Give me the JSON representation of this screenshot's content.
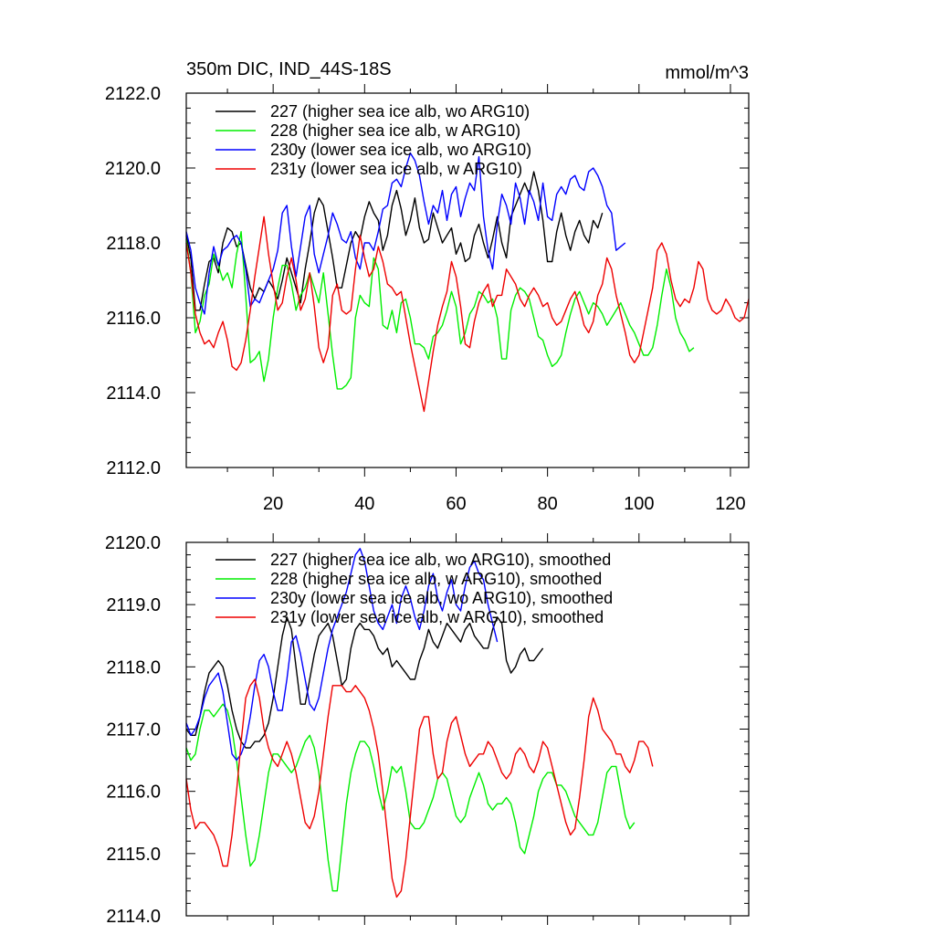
{
  "chart_data": [
    {
      "type": "line",
      "title": "350m DIC, IND_44S-18S",
      "units": "mmol/m^3",
      "xlim": [
        1,
        124
      ],
      "ylim": [
        2112,
        2122
      ],
      "xticks": [
        20,
        40,
        60,
        80,
        100,
        120
      ],
      "yticks": [
        2112.0,
        2114.0,
        2116.0,
        2118.0,
        2120.0,
        2122.0
      ],
      "ytick_labels": [
        "2112.0",
        "2114.0",
        "2116.0",
        "2118.0",
        "2120.0",
        "2122.0"
      ],
      "xtick_labels": [
        "20",
        "40",
        "60",
        "80",
        "100",
        "120"
      ],
      "legend_position": "top-left",
      "series": [
        {
          "name": "227 (higher sea ice alb, wo ARG10)",
          "color": "#000000",
          "x0": 1,
          "values": [
            2118.2,
            2117.6,
            2116.2,
            2116.2,
            2116.9,
            2117.5,
            2117.6,
            2117.2,
            2118.0,
            2118.4,
            2118.3,
            2117.9,
            2118.0,
            2117.4,
            2116.8,
            2116.5,
            2116.8,
            2116.7,
            2117.0,
            2116.8,
            2116.5,
            2117.0,
            2117.6,
            2117.2,
            2116.8,
            2116.4,
            2117.3,
            2118.0,
            2118.8,
            2119.2,
            2119.0,
            2118.3,
            2117.6,
            2116.8,
            2116.8,
            2117.4,
            2118.0,
            2118.3,
            2118.1,
            2118.7,
            2119.1,
            2118.8,
            2118.6,
            2117.8,
            2118.2,
            2119.0,
            2119.4,
            2118.9,
            2118.2,
            2118.6,
            2119.2,
            2118.4,
            2118.0,
            2118.1,
            2118.8,
            2118.4,
            2118.0,
            2118.2,
            2118.4,
            2117.7,
            2118.0,
            2117.5,
            2117.6,
            2118.2,
            2118.5,
            2118.0,
            2117.6,
            2118.1,
            2118.7,
            2118.0,
            2117.6,
            2118.7,
            2119.0,
            2119.3,
            2119.6,
            2119.3,
            2119.9,
            2119.4,
            2118.6,
            2117.5,
            2117.5,
            2118.3,
            2118.8,
            2118.2,
            2117.8,
            2118.3,
            2118.6,
            2118.2,
            2118.0,
            2118.6,
            2118.4,
            2118.8
          ]
        },
        {
          "name": "228 (higher sea ice alb, w ARG10)",
          "color": "#00ee00",
          "x0": 1,
          "values": [
            2118.1,
            2117.2,
            2115.6,
            2115.9,
            2116.6,
            2116.9,
            2117.7,
            2117.4,
            2117.0,
            2117.2,
            2116.8,
            2117.7,
            2118.3,
            2116.6,
            2114.8,
            2114.9,
            2115.1,
            2114.3,
            2114.9,
            2116.0,
            2116.8,
            2117.4,
            2117.4,
            2116.9,
            2116.2,
            2116.6,
            2116.8,
            2117.2,
            2116.8,
            2116.4,
            2117.2,
            2116.1,
            2115.0,
            2114.1,
            2114.1,
            2114.2,
            2114.4,
            2116.0,
            2116.6,
            2116.4,
            2116.3,
            2117.6,
            2117.3,
            2115.8,
            2115.7,
            2116.2,
            2115.6,
            2116.4,
            2116.5,
            2116.0,
            2115.3,
            2115.3,
            2115.2,
            2114.9,
            2115.5,
            2115.6,
            2115.8,
            2116.2,
            2116.7,
            2116.3,
            2115.3,
            2115.6,
            2116.1,
            2116.3,
            2116.7,
            2116.6,
            2116.4,
            2116.5,
            2116.0,
            2114.9,
            2114.9,
            2116.2,
            2116.6,
            2116.8,
            2116.7,
            2116.5,
            2116.0,
            2115.5,
            2115.4,
            2115.0,
            2114.7,
            2114.8,
            2115.0,
            2115.6,
            2116.1,
            2116.5,
            2116.7,
            2116.4,
            2116.1,
            2116.4,
            2116.3,
            2116.1,
            2115.8,
            2116.0,
            2116.2,
            2116.4,
            2116.1,
            2115.8,
            2115.6,
            2115.3,
            2115.0,
            2115.0,
            2115.2,
            2115.8,
            2116.6,
            2117.3,
            2116.8,
            2116.0,
            2115.6,
            2115.4,
            2115.1,
            2115.2
          ]
        },
        {
          "name": "230y (lower sea ice alb, wo ARG10)",
          "color": "#0000ff",
          "x0": 1,
          "values": [
            2118.3,
            2117.8,
            2116.8,
            2116.4,
            2116.1,
            2117.2,
            2117.9,
            2117.4,
            2117.8,
            2117.9,
            2118.1,
            2118.2,
            2118.0,
            2117.3,
            2116.3,
            2116.5,
            2116.4,
            2116.7,
            2117.0,
            2117.3,
            2117.8,
            2118.8,
            2119.0,
            2117.9,
            2117.1,
            2117.9,
            2118.7,
            2119.0,
            2117.7,
            2117.2,
            2117.7,
            2118.2,
            2118.8,
            2118.5,
            2118.1,
            2118.0,
            2118.3,
            2117.6,
            2117.3,
            2118.0,
            2118.0,
            2117.8,
            2118.3,
            2118.9,
            2119.0,
            2119.6,
            2119.7,
            2119.5,
            2120.0,
            2120.4,
            2120.2,
            2119.8,
            2119.1,
            2118.5,
            2119.0,
            2118.8,
            2119.4,
            2118.6,
            2119.3,
            2119.5,
            2118.7,
            2119.2,
            2119.6,
            2119.4,
            2120.3,
            2118.7,
            2117.8,
            2117.3,
            2118.5,
            2119.3,
            2119.0,
            2118.5,
            2119.6,
            2119.2,
            2118.5,
            2119.4,
            2119.1,
            2118.6,
            2119.6,
            2118.7,
            2118.6,
            2119.3,
            2119.5,
            2119.3,
            2119.7,
            2119.8,
            2119.5,
            2119.4,
            2119.9,
            2120.0,
            2119.8,
            2119.5,
            2119.0,
            2118.8,
            2117.8,
            2117.9,
            2118.0
          ]
        },
        {
          "name": "231y (lower sea ice alb, w ARG10)",
          "color": "#ee0000",
          "x0": 1,
          "values": [
            2118.0,
            2117.2,
            2116.1,
            2115.6,
            2115.3,
            2115.4,
            2115.2,
            2115.6,
            2115.9,
            2115.4,
            2114.7,
            2114.6,
            2114.8,
            2115.4,
            2116.2,
            2117.1,
            2117.9,
            2118.7,
            2117.7,
            2116.9,
            2116.2,
            2116.4,
            2117.1,
            2117.6,
            2117.0,
            2116.2,
            2116.5,
            2117.2,
            2116.3,
            2115.2,
            2114.8,
            2115.2,
            2116.6,
            2116.9,
            2116.2,
            2116.1,
            2116.2,
            2117.3,
            2118.2,
            2117.6,
            2117.1,
            2117.3,
            2117.9,
            2117.5,
            2116.9,
            2116.8,
            2116.6,
            2116.7,
            2116.0,
            2115.3,
            2114.7,
            2114.1,
            2113.5,
            2114.3,
            2115.1,
            2115.8,
            2116.3,
            2116.7,
            2117.5,
            2117.1,
            2116.3,
            2115.3,
            2115.2,
            2115.9,
            2116.4,
            2116.7,
            2116.9,
            2116.3,
            2116.6,
            2116.6,
            2117.3,
            2117.1,
            2116.9,
            2116.5,
            2116.3,
            2116.6,
            2116.8,
            2116.6,
            2116.3,
            2116.4,
            2116.0,
            2115.8,
            2115.9,
            2116.2,
            2116.5,
            2116.7,
            2116.3,
            2115.8,
            2115.6,
            2115.9,
            2116.6,
            2116.9,
            2117.6,
            2117.3,
            2116.6,
            2116.1,
            2115.6,
            2115.0,
            2114.8,
            2115.0,
            2115.6,
            2116.2,
            2116.8,
            2117.8,
            2118.0,
            2117.7,
            2117.0,
            2116.5,
            2116.3,
            2116.5,
            2116.4,
            2116.8,
            2117.5,
            2117.3,
            2116.5,
            2116.2,
            2116.1,
            2116.2,
            2116.5,
            2116.3,
            2116.0,
            2115.9,
            2116.0,
            2116.5
          ]
        }
      ]
    },
    {
      "type": "line",
      "title": "",
      "units": "",
      "xlim": [
        1,
        124
      ],
      "ylim": [
        2114,
        2120
      ],
      "xticks": [
        20,
        40,
        60,
        80,
        100,
        120
      ],
      "yticks": [
        2114.0,
        2115.0,
        2116.0,
        2117.0,
        2118.0,
        2119.0,
        2120.0
      ],
      "ytick_labels": [
        "2114.0",
        "2115.0",
        "2116.0",
        "2117.0",
        "2118.0",
        "2119.0",
        "2120.0"
      ],
      "xtick_labels": [],
      "legend_position": "top-left",
      "series": [
        {
          "name": "227 (higher sea ice alb, wo ARG10), smoothed",
          "color": "#000000",
          "x0": 1,
          "values": [
            2117.0,
            2116.9,
            2116.9,
            2117.2,
            2117.6,
            2117.9,
            2118.0,
            2118.1,
            2118.0,
            2117.7,
            2117.3,
            2117.0,
            2116.8,
            2116.7,
            2116.7,
            2116.8,
            2116.8,
            2116.9,
            2117.1,
            2117.5,
            2118.0,
            2118.5,
            2118.8,
            2118.6,
            2118.0,
            2117.4,
            2117.4,
            2117.8,
            2118.2,
            2118.5,
            2118.6,
            2118.7,
            2118.5,
            2118.1,
            2117.7,
            2117.8,
            2118.3,
            2118.6,
            2118.7,
            2118.6,
            2118.6,
            2118.5,
            2118.3,
            2118.2,
            2118.3,
            2118.0,
            2118.1,
            2118.0,
            2117.9,
            2117.8,
            2117.8,
            2118.1,
            2118.3,
            2118.6,
            2118.4,
            2118.3,
            2118.5,
            2118.7,
            2118.6,
            2118.5,
            2118.4,
            2118.6,
            2118.7,
            2118.5,
            2118.4,
            2118.3,
            2118.3,
            2118.6,
            2118.8,
            2118.7,
            2118.1,
            2117.9,
            2118.0,
            2118.2,
            2118.3,
            2118.1,
            2118.1,
            2118.2,
            2118.3
          ]
        },
        {
          "name": "228 (higher sea ice alb, w ARG10), smoothed",
          "color": "#00ee00",
          "x0": 1,
          "values": [
            2116.7,
            2116.5,
            2116.6,
            2117.0,
            2117.3,
            2117.3,
            2117.2,
            2117.3,
            2117.4,
            2117.3,
            2117.0,
            2116.5,
            2115.9,
            2115.3,
            2114.8,
            2114.9,
            2115.3,
            2115.8,
            2116.3,
            2116.6,
            2116.6,
            2116.5,
            2116.4,
            2116.3,
            2116.4,
            2116.6,
            2116.8,
            2116.9,
            2116.7,
            2116.3,
            2115.6,
            2114.9,
            2114.4,
            2114.4,
            2115.1,
            2115.8,
            2116.3,
            2116.6,
            2116.8,
            2116.8,
            2116.7,
            2116.4,
            2116.0,
            2115.7,
            2116.0,
            2116.4,
            2116.3,
            2116.4,
            2116.0,
            2115.5,
            2115.4,
            2115.4,
            2115.5,
            2115.7,
            2115.9,
            2116.2,
            2116.3,
            2116.2,
            2115.9,
            2115.6,
            2115.5,
            2115.6,
            2115.9,
            2116.1,
            2116.3,
            2116.1,
            2115.8,
            2115.7,
            2115.8,
            2115.8,
            2115.9,
            2115.8,
            2115.5,
            2115.1,
            2115.0,
            2115.3,
            2115.6,
            2116.0,
            2116.2,
            2116.3,
            2116.3,
            2116.1,
            2116.1,
            2116.0,
            2115.8,
            2115.6,
            2115.5,
            2115.4,
            2115.3,
            2115.3,
            2115.5,
            2115.9,
            2116.3,
            2116.4,
            2116.4,
            2116.0,
            2115.6,
            2115.4,
            2115.5
          ]
        },
        {
          "name": "230y (lower sea ice alb, wo ARG10), smoothed",
          "color": "#0000ff",
          "x0": 1,
          "values": [
            2117.1,
            2116.9,
            2117.0,
            2117.2,
            2117.5,
            2117.7,
            2117.8,
            2117.9,
            2117.6,
            2117.1,
            2116.6,
            2116.5,
            2116.6,
            2116.8,
            2117.2,
            2117.7,
            2118.1,
            2118.2,
            2118.0,
            2117.6,
            2117.3,
            2117.3,
            2117.8,
            2118.4,
            2118.5,
            2118.2,
            2117.8,
            2117.4,
            2117.3,
            2117.5,
            2117.9,
            2118.3,
            2118.6,
            2118.8,
            2119.0,
            2119.2,
            2119.5,
            2119.8,
            2119.9,
            2119.7,
            2119.3,
            2118.9,
            2118.7,
            2118.6,
            2118.8,
            2119.0,
            2118.7,
            2119.1,
            2119.3,
            2119.1,
            2118.8,
            2118.6,
            2118.9,
            2119.3,
            2119.5,
            2119.1,
            2118.9,
            2119.2,
            2119.4,
            2119.0,
            2118.9,
            2119.3,
            2119.6,
            2119.7,
            2119.5,
            2119.4,
            2119.0,
            2118.7,
            2118.4
          ]
        },
        {
          "name": "231y (lower sea ice alb, w ARG10), smoothed",
          "color": "#ee0000",
          "x0": 1,
          "values": [
            2116.2,
            2115.7,
            2115.4,
            2115.5,
            2115.5,
            2115.4,
            2115.3,
            2115.1,
            2114.8,
            2114.8,
            2115.3,
            2116.0,
            2116.8,
            2117.5,
            2117.7,
            2117.8,
            2117.5,
            2117.0,
            2116.7,
            2116.5,
            2116.4,
            2116.6,
            2116.8,
            2116.6,
            2116.3,
            2115.9,
            2115.5,
            2115.4,
            2115.6,
            2116.0,
            2116.6,
            2117.2,
            2117.7,
            2117.7,
            2117.7,
            2117.6,
            2117.6,
            2117.7,
            2117.6,
            2117.5,
            2117.3,
            2117.0,
            2116.6,
            2116.0,
            2115.3,
            2114.6,
            2114.3,
            2114.4,
            2114.9,
            2115.6,
            2116.3,
            2117.0,
            2117.2,
            2117.2,
            2116.6,
            2116.2,
            2116.3,
            2116.8,
            2117.1,
            2117.2,
            2116.9,
            2116.6,
            2116.4,
            2116.5,
            2116.6,
            2116.6,
            2116.8,
            2116.7,
            2116.5,
            2116.3,
            2116.2,
            2116.3,
            2116.6,
            2116.7,
            2116.6,
            2116.4,
            2116.3,
            2116.5,
            2116.8,
            2116.7,
            2116.4,
            2116.1,
            2115.8,
            2115.5,
            2115.3,
            2115.4,
            2115.9,
            2116.5,
            2117.2,
            2117.5,
            2117.3,
            2117.0,
            2116.9,
            2116.8,
            2116.6,
            2116.6,
            2116.4,
            2116.3,
            2116.5,
            2116.8,
            2116.8,
            2116.7,
            2116.4
          ]
        }
      ]
    }
  ]
}
